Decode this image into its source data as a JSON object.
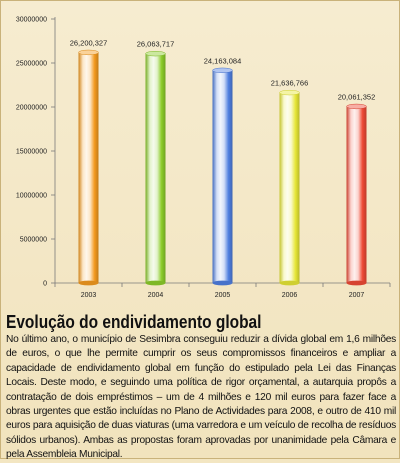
{
  "chart_data": {
    "type": "bar",
    "categories": [
      "2003",
      "2004",
      "2005",
      "2006",
      "2007"
    ],
    "values": [
      26200327,
      26063717,
      24163084,
      21636766,
      20061352
    ],
    "value_labels": [
      "26,200,327",
      "26,063,717",
      "24,163,084",
      "21,636,766",
      "20,061,352"
    ],
    "ylim": [
      0,
      30000000
    ],
    "y_ticks": [
      0,
      5000000,
      10000000,
      15000000,
      20000000,
      25000000,
      30000000
    ],
    "y_tick_labels": [
      "0",
      "5000000",
      "10000000",
      "15000000",
      "20000000",
      "25000000",
      "30000000"
    ],
    "title": "",
    "xlabel": "",
    "ylabel": "",
    "grid": false,
    "bar_colors": [
      "#f39a1f",
      "#8ccc2a",
      "#4f7fe0",
      "#e6e636",
      "#ee4a36"
    ]
  },
  "article": {
    "title": "Evolução do endividamento global",
    "body": "No último ano, o município de Sesimbra conseguiu reduzir a dívida global em 1,6 milhões de euros, o que lhe permite cumprir os seus compromissos financeiros e ampliar a capacidade de endividamento global em função do estipulado pela Lei das Finanças Locais. Deste modo, e seguindo uma política de rigor orçamental, a autarquia propôs a contratação de dois empréstimos – um de 4 milhões e 120 mil euros para fazer face a obras urgentes que estão incluídas no Plano de Actividades para 2008, e outro de 410 mil euros para aquisição de duas viaturas (uma varredora e um veículo de recolha de resíduos sólidos urbanos). Ambas as propostas foram aprovadas por unanimidade pela Câmara e pela Assembleia Municipal."
  }
}
